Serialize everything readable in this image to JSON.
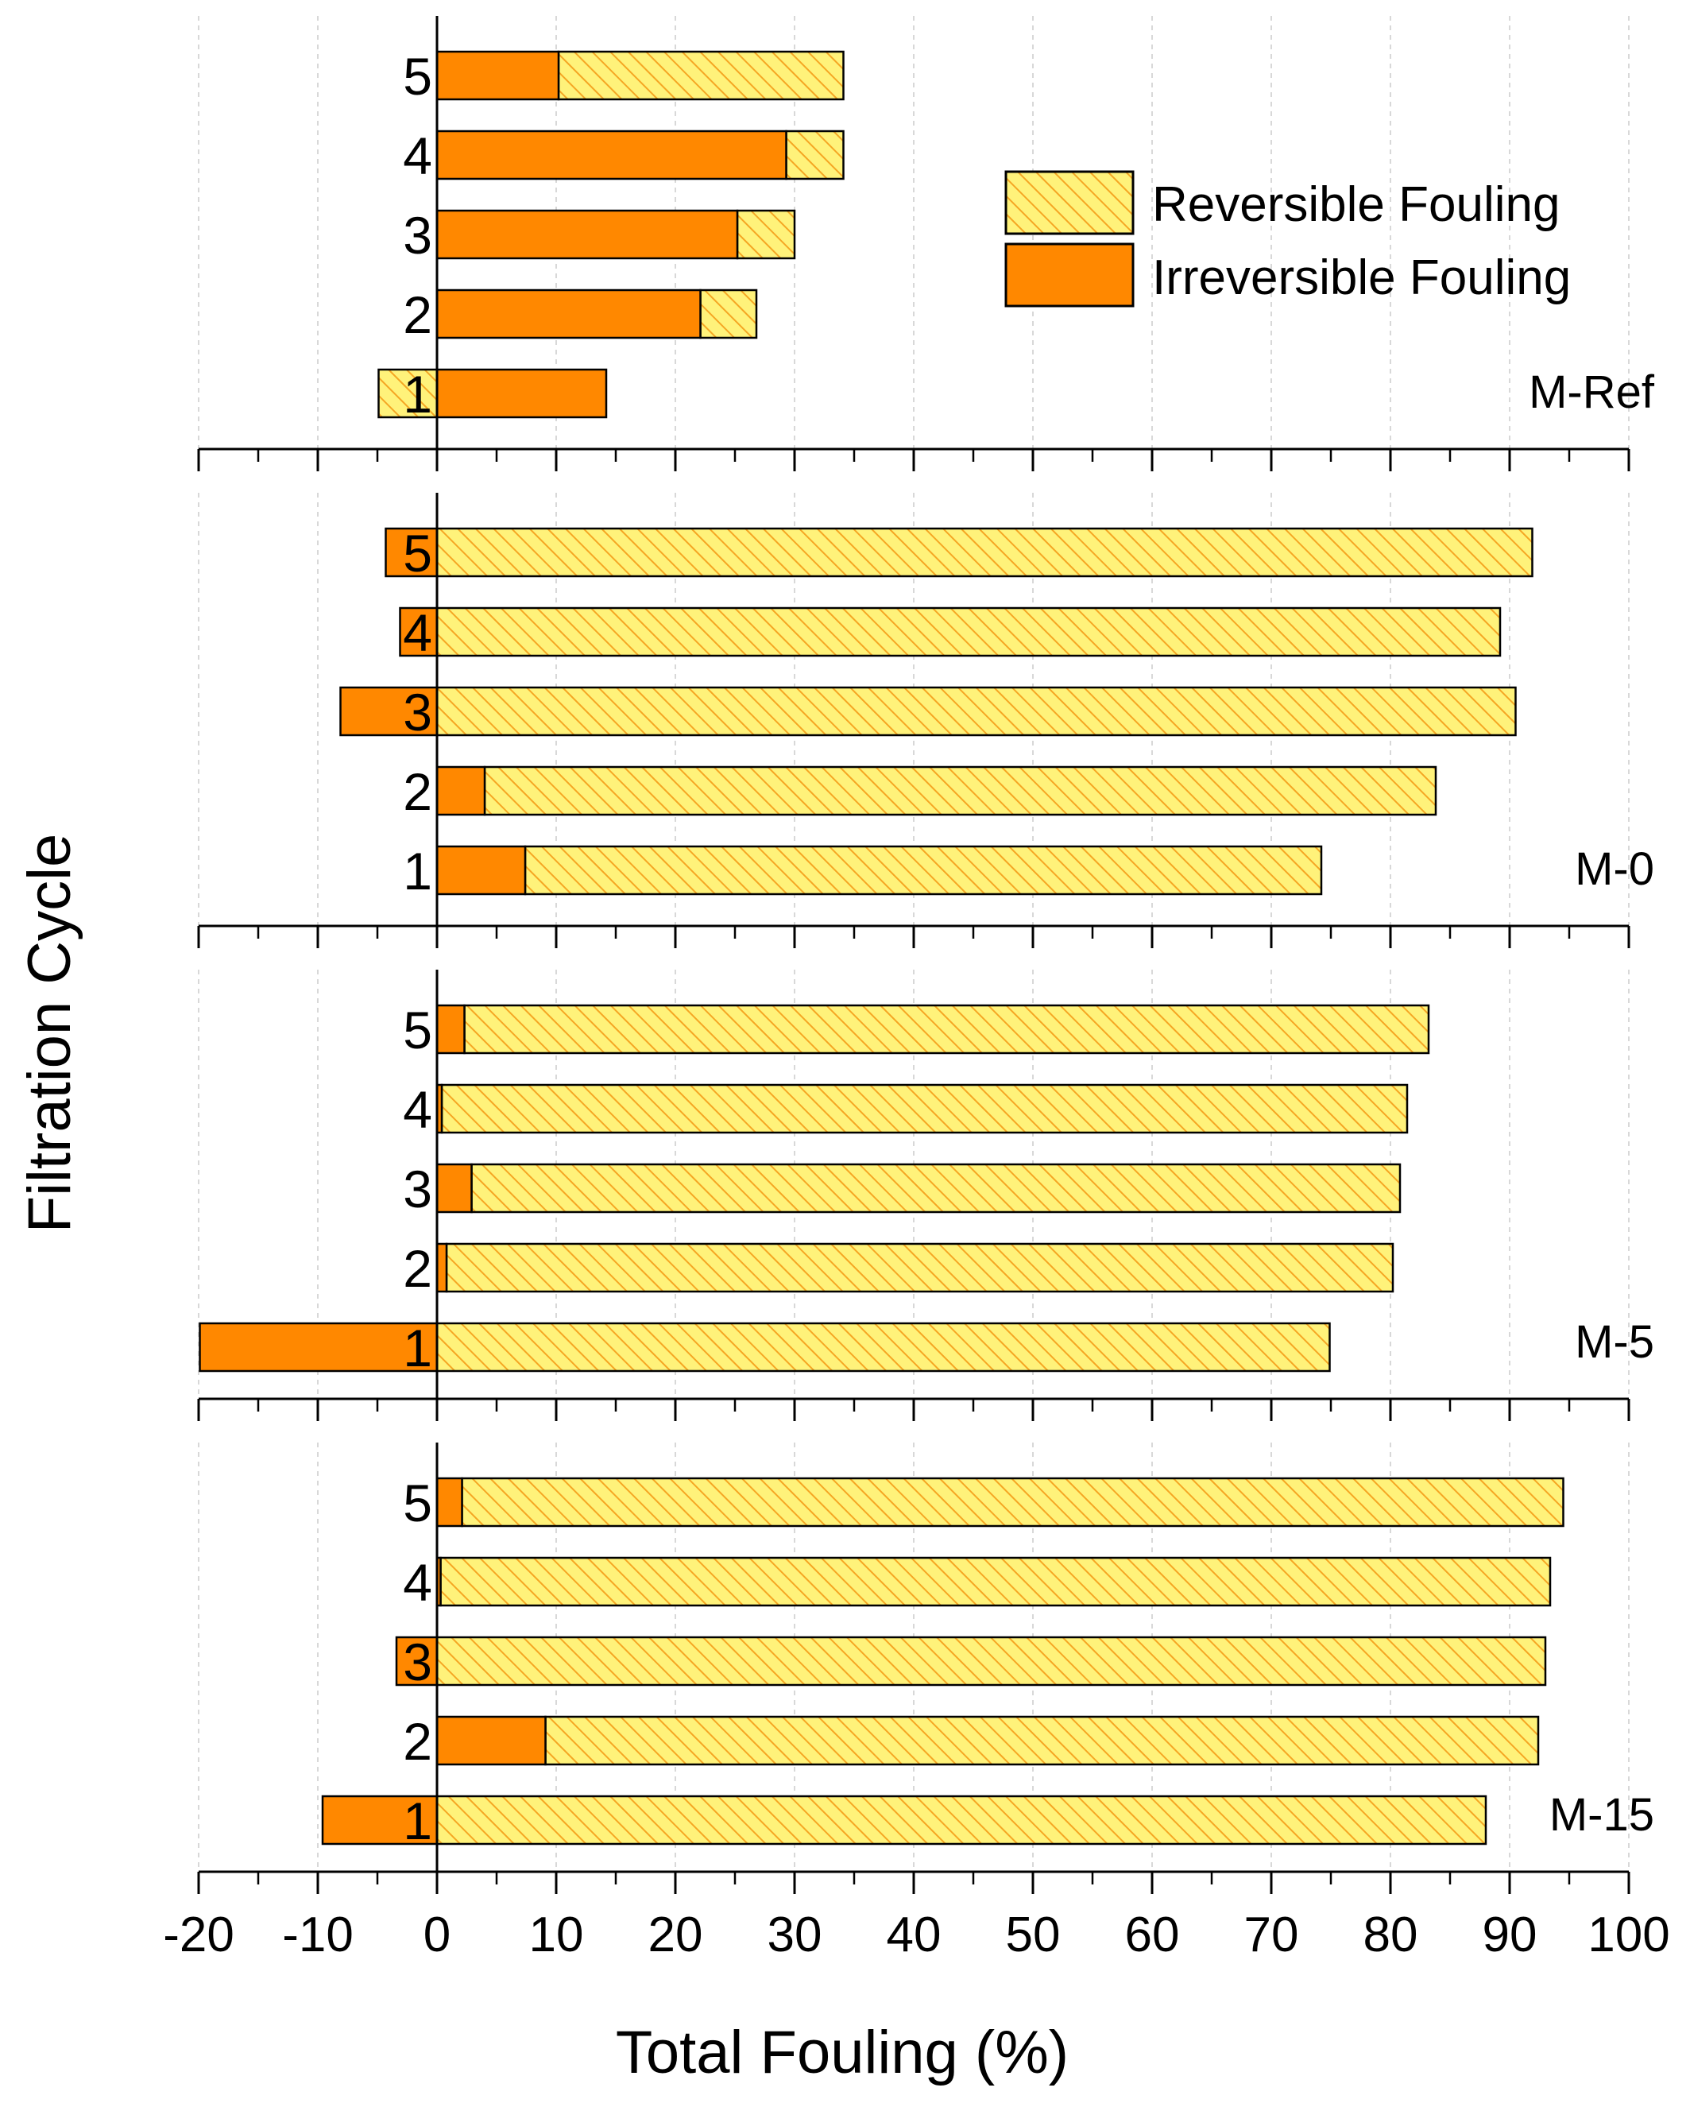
{
  "chart_data": {
    "type": "bar",
    "orientation": "horizontal",
    "stacked": true,
    "xlabel": "Total Fouling (%)",
    "ylabel": "Filtration Cycle",
    "xlim": [
      -20,
      100
    ],
    "xticks": [
      "-20",
      "-10",
      "0",
      "10",
      "20",
      "30",
      "40",
      "50",
      "60",
      "70",
      "80",
      "90",
      "100"
    ],
    "xtick_values": [
      -20,
      -10,
      0,
      10,
      20,
      30,
      40,
      50,
      60,
      70,
      80,
      90,
      100
    ],
    "grid": true,
    "legend": {
      "position": "top-right",
      "entries": [
        {
          "name": "Reversible Fouling",
          "color": "#fff27a",
          "hatch_color": "#f5a623"
        },
        {
          "name": "Irreversible Fouling",
          "color": "#ff8800"
        }
      ]
    },
    "colors": {
      "reversible": "#fff27a",
      "reversible_hatch": "#f5a623",
      "irreversible": "#ff8800"
    },
    "panels": [
      {
        "name": "M-Ref",
        "categories": [
          "5",
          "4",
          "3",
          "2",
          "1"
        ],
        "series": [
          {
            "name": "Irreversible Fouling",
            "values": [
              10.2,
              29.3,
              25.2,
              22.1,
              14.2
            ]
          },
          {
            "name": "Reversible Fouling",
            "values": [
              23.9,
              4.8,
              4.8,
              4.7,
              -4.9
            ]
          }
        ]
      },
      {
        "name": "M-0",
        "categories": [
          "5",
          "4",
          "3",
          "2",
          "1"
        ],
        "series": [
          {
            "name": "Irreversible Fouling",
            "values": [
              -4.3,
              -3.1,
              -8.1,
              4.0,
              7.4
            ]
          },
          {
            "name": "Reversible Fouling",
            "values": [
              91.9,
              89.2,
              90.5,
              79.8,
              66.8
            ]
          }
        ]
      },
      {
        "name": "M-5",
        "categories": [
          "5",
          "4",
          "3",
          "2",
          "1"
        ],
        "series": [
          {
            "name": "Irreversible Fouling",
            "values": [
              2.3,
              0.4,
              2.9,
              0.8,
              -19.9
            ]
          },
          {
            "name": "Reversible Fouling",
            "values": [
              80.9,
              81.0,
              77.9,
              79.4,
              74.9
            ]
          }
        ]
      },
      {
        "name": "M-15",
        "categories": [
          "5",
          "4",
          "3",
          "2",
          "1"
        ],
        "series": [
          {
            "name": "Irreversible Fouling",
            "values": [
              2.1,
              0.3,
              -3.4,
              9.1,
              -9.6
            ]
          },
          {
            "name": "Reversible Fouling",
            "values": [
              92.4,
              93.1,
              93.0,
              83.3,
              88.0
            ]
          }
        ]
      }
    ]
  }
}
